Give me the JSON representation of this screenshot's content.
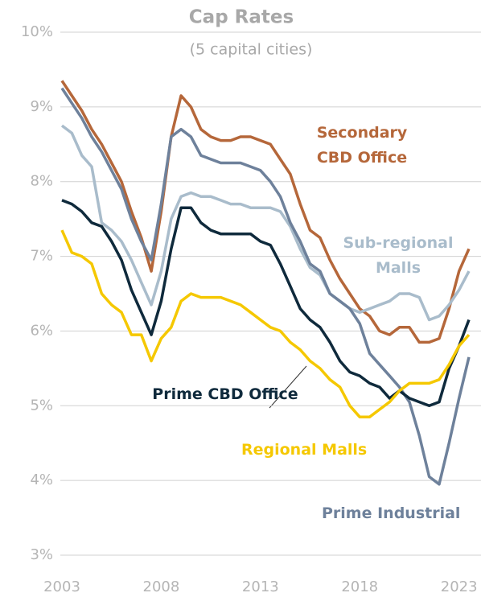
{
  "chart_data": {
    "type": "line",
    "title": "Cap Rates",
    "subtitle": "(5 capital cities)",
    "x": [
      2003,
      2003.5,
      2004,
      2004.5,
      2005,
      2005.5,
      2006,
      2006.5,
      2007,
      2007.5,
      2008,
      2008.5,
      2009,
      2009.5,
      2010,
      2010.5,
      2011,
      2011.5,
      2012,
      2012.5,
      2013,
      2013.5,
      2014,
      2014.5,
      2015,
      2015.5,
      2016,
      2016.5,
      2017,
      2017.5,
      2018,
      2018.5,
      2019,
      2019.5,
      2020,
      2020.5,
      2021,
      2021.5,
      2022,
      2022.5,
      2023,
      2023.5
    ],
    "xlim": [
      2003,
      2023.5
    ],
    "xticks": [
      2003,
      2008,
      2013,
      2018,
      2023
    ],
    "ylim": [
      3,
      10
    ],
    "yticks": [
      {
        "value": 3,
        "label": "3%"
      },
      {
        "value": 4,
        "label": "4%"
      },
      {
        "value": 5,
        "label": "5%"
      },
      {
        "value": 6,
        "label": "6%"
      },
      {
        "value": 7,
        "label": "7%"
      },
      {
        "value": 8,
        "label": "8%"
      },
      {
        "value": 9,
        "label": "9%"
      },
      {
        "value": 10,
        "label": "10%"
      }
    ],
    "grid": true,
    "series": [
      {
        "name": "Secondary CBD Office",
        "color": "#b5673a",
        "values": [
          9.35,
          9.15,
          8.95,
          8.7,
          8.5,
          8.25,
          8.0,
          7.6,
          7.25,
          6.8,
          7.6,
          8.6,
          9.15,
          9.0,
          8.7,
          8.6,
          8.55,
          8.55,
          8.6,
          8.6,
          8.55,
          8.5,
          8.3,
          8.1,
          7.7,
          7.35,
          7.25,
          6.95,
          6.7,
          6.5,
          6.3,
          6.2,
          6.0,
          5.95,
          6.05,
          6.05,
          5.85,
          5.85,
          5.9,
          6.3,
          6.8,
          7.1
        ]
      },
      {
        "name": "Sub-regional Malls",
        "color": "#a9bccb",
        "values": [
          8.75,
          8.65,
          8.35,
          8.2,
          7.45,
          7.35,
          7.2,
          6.95,
          6.65,
          6.35,
          6.8,
          7.5,
          7.8,
          7.85,
          7.8,
          7.8,
          7.75,
          7.7,
          7.7,
          7.65,
          7.65,
          7.65,
          7.6,
          7.4,
          7.1,
          6.85,
          6.75,
          6.5,
          6.4,
          6.3,
          6.25,
          6.3,
          6.35,
          6.4,
          6.5,
          6.5,
          6.45,
          6.15,
          6.2,
          6.35,
          6.55,
          6.8
        ]
      },
      {
        "name": "Prime Industrial",
        "color": "#6e819b",
        "values": [
          9.25,
          9.05,
          8.85,
          8.6,
          8.4,
          8.15,
          7.9,
          7.5,
          7.2,
          6.95,
          7.7,
          8.6,
          8.7,
          8.6,
          8.35,
          8.3,
          8.25,
          8.25,
          8.25,
          8.2,
          8.15,
          8.0,
          7.8,
          7.45,
          7.2,
          6.9,
          6.8,
          6.5,
          6.4,
          6.3,
          6.1,
          5.7,
          5.55,
          5.4,
          5.25,
          5.05,
          4.6,
          4.05,
          3.95,
          4.5,
          5.1,
          5.65
        ]
      },
      {
        "name": "Prime CBD Office",
        "color": "#0f2a3c",
        "values": [
          7.75,
          7.7,
          7.6,
          7.45,
          7.4,
          7.2,
          6.95,
          6.55,
          6.25,
          5.95,
          6.4,
          7.1,
          7.65,
          7.65,
          7.45,
          7.35,
          7.3,
          7.3,
          7.3,
          7.3,
          7.2,
          7.15,
          6.9,
          6.6,
          6.3,
          6.15,
          6.05,
          5.85,
          5.6,
          5.45,
          5.4,
          5.3,
          5.25,
          5.1,
          5.2,
          5.1,
          5.05,
          5.0,
          5.05,
          5.5,
          5.8,
          6.15
        ]
      },
      {
        "name": "Regional Malls",
        "color": "#f5c800",
        "values": [
          7.35,
          7.05,
          7.0,
          6.9,
          6.5,
          6.35,
          6.25,
          5.95,
          5.95,
          5.6,
          5.9,
          6.05,
          6.4,
          6.5,
          6.45,
          6.45,
          6.45,
          6.4,
          6.35,
          6.25,
          6.15,
          6.05,
          6.0,
          5.85,
          5.75,
          5.6,
          5.5,
          5.35,
          5.25,
          5.0,
          4.85,
          4.85,
          4.95,
          5.05,
          5.2,
          5.3,
          5.3,
          5.3,
          5.35,
          5.55,
          5.8,
          5.95
        ]
      }
    ]
  }
}
